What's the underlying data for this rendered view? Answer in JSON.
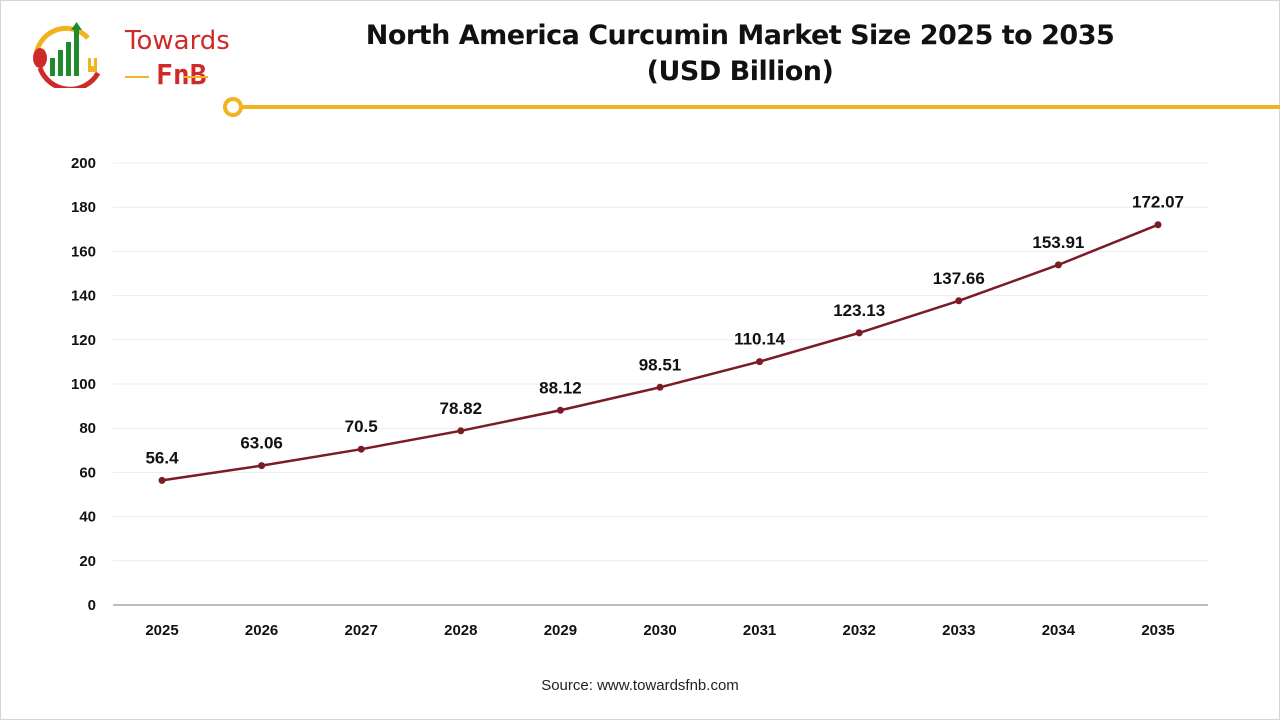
{
  "brand": {
    "line1": "Towards",
    "line2": "FnB"
  },
  "colors": {
    "line": "#7b1b26",
    "accent": "#f2b321",
    "brand_red": "#cf2a2a",
    "brand_green": "#1f8a2e"
  },
  "source": "Source: www.towardsfnb.com",
  "chart_data": {
    "type": "line",
    "title": "North America Curcumin Market Size 2025 to 2035",
    "subtitle": "(USD Billion)",
    "xlabel": "",
    "ylabel": "",
    "categories": [
      "2025",
      "2026",
      "2027",
      "2028",
      "2029",
      "2030",
      "2031",
      "2032",
      "2033",
      "2034",
      "2035"
    ],
    "values": [
      56.4,
      63.06,
      70.5,
      78.82,
      88.12,
      98.51,
      110.14,
      123.13,
      137.66,
      153.91,
      172.07
    ],
    "data_labels": [
      "56.4",
      "63.06",
      "70.5",
      "78.82",
      "88.12",
      "98.51",
      "110.14",
      "123.13",
      "137.66",
      "153.91",
      "172.07"
    ],
    "ylim": [
      0,
      200
    ],
    "yticks": [
      "0",
      "20",
      "40",
      "60",
      "80",
      "100",
      "120",
      "140",
      "160",
      "180",
      "200"
    ],
    "grid": true,
    "legend": "none"
  }
}
